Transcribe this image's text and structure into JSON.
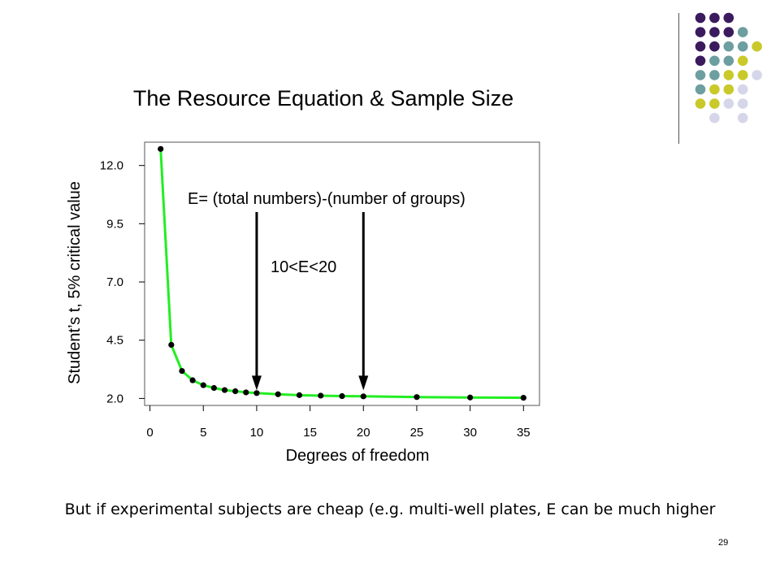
{
  "slide": {
    "caption": "But if experimental subjects are cheap (e.g. multi-well plates, E can be much higher",
    "page_number": "29"
  },
  "decor": {
    "colors": {
      "purple": "#3b1a5e",
      "teal": "#6d9ea0",
      "yellow": "#c9c92a",
      "lavender": "#d6d6ea"
    },
    "rows": [
      [
        "purple",
        "purple",
        "purple",
        null,
        null
      ],
      [
        "purple",
        "purple",
        "purple",
        "teal",
        null
      ],
      [
        "purple",
        "purple",
        "teal",
        "teal",
        "yellow"
      ],
      [
        "purple",
        "teal",
        "teal",
        "yellow",
        null
      ],
      [
        "teal",
        "teal",
        "yellow",
        "yellow",
        "lavender"
      ],
      [
        "teal",
        "yellow",
        "yellow",
        "lavender",
        null
      ],
      [
        "yellow",
        "yellow",
        "lavender",
        "lavender",
        null
      ],
      [
        null,
        "lavender",
        null,
        "lavender",
        null
      ]
    ]
  },
  "chart_data": {
    "type": "line",
    "title": "The Resource Equation & Sample Size",
    "xlabel": "Degrees of freedom",
    "ylabel": "Student’s t, 5% critical value",
    "x": [
      1,
      2,
      3,
      4,
      5,
      6,
      7,
      8,
      9,
      10,
      12,
      14,
      16,
      18,
      20,
      25,
      30,
      35
    ],
    "series": [
      {
        "values": [
          12.71,
          4.3,
          3.18,
          2.78,
          2.57,
          2.45,
          2.36,
          2.31,
          2.26,
          2.23,
          2.18,
          2.14,
          2.12,
          2.1,
          2.09,
          2.06,
          2.04,
          2.03
        ],
        "color": "#22ee22",
        "marker_color": "#000000"
      }
    ],
    "xticks": [
      0,
      5,
      10,
      15,
      20,
      25,
      30,
      35
    ],
    "yticks": [
      2.0,
      4.5,
      7.0,
      9.5,
      12.0
    ],
    "ytick_labels": [
      "2.0",
      "4.5",
      "7.0",
      "9.5",
      "12.0"
    ],
    "xlim": [
      -0.5,
      36.5
    ],
    "ylim": [
      1.7,
      13.0
    ],
    "grid": false,
    "annotations": [
      {
        "text": "E= (total numbers)-(number of groups)"
      },
      {
        "text": "10<E<20"
      }
    ],
    "arrows": [
      {
        "x": 10,
        "y_from": 10.0,
        "y_to": 2.35
      },
      {
        "x": 20,
        "y_from": 10.0,
        "y_to": 2.35
      }
    ]
  }
}
